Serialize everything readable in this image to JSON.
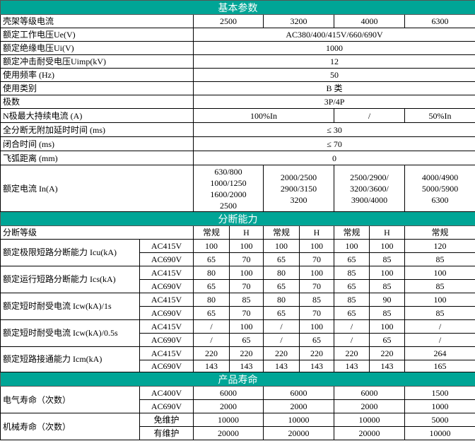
{
  "accent_color": "#00a596",
  "sections": [
    {
      "title": "基本参数",
      "rows": [
        {
          "label": "壳架等级电流",
          "values": [
            "2500",
            "3200",
            "4000",
            "6300"
          ]
        },
        {
          "label": "额定工作电压Ue(V)",
          "values": [
            "AC380/400/415V/660/690V"
          ]
        },
        {
          "label": "额定绝缘电压Ui(V)",
          "values": [
            "1000"
          ]
        },
        {
          "label": "额定冲击耐受电压Uimp(kV)",
          "values": [
            "12"
          ]
        },
        {
          "label": "使用频率 (Hz)",
          "values": [
            "50"
          ]
        },
        {
          "label": "使用类别",
          "values": [
            "B 类"
          ]
        },
        {
          "label": "极数",
          "values": [
            "3P/4P"
          ]
        },
        {
          "label": "N极最大持续电流 (A)",
          "values": [
            "100%In",
            "/",
            "50%In"
          ]
        },
        {
          "label": "全分断无附加延时时间 (ms)",
          "values": [
            "≤ 30"
          ]
        },
        {
          "label": "闭合时间 (ms)",
          "values": [
            "≤ 70"
          ]
        },
        {
          "label": "飞弧距离 (mm)",
          "values": [
            "0"
          ]
        },
        {
          "label": "额定电流 In(A)",
          "values": [
            "630/800\n1000/1250\n1600/2000\n2500",
            "2000/2500\n2900/3150\n3200",
            "2500/2900/\n3200/3600/\n3900/4000",
            "4000/4900\n5000/5900\n6300"
          ]
        }
      ]
    },
    {
      "title": "分断能力",
      "grade_row": {
        "label": "分断等级",
        "values": [
          "常规",
          "H",
          "常规",
          "H",
          "常规",
          "H",
          "常规"
        ]
      },
      "groups": [
        {
          "label": "额定极限短路分断能力 Icu(kA)",
          "rows": [
            {
              "voltage": "AC415V",
              "values": [
                "100",
                "100",
                "100",
                "100",
                "100",
                "100",
                "120"
              ]
            },
            {
              "voltage": "AC690V",
              "values": [
                "65",
                "70",
                "65",
                "70",
                "65",
                "85",
                "85"
              ]
            }
          ]
        },
        {
          "label": "额定运行短路分断能力 Ics(kA)",
          "rows": [
            {
              "voltage": "AC415V",
              "values": [
                "80",
                "100",
                "80",
                "100",
                "85",
                "100",
                "100"
              ]
            },
            {
              "voltage": "AC690V",
              "values": [
                "65",
                "70",
                "65",
                "70",
                "65",
                "85",
                "85"
              ]
            }
          ]
        },
        {
          "label": "额定短时耐受电流 Icw(kA)/1s",
          "rows": [
            {
              "voltage": "AC415V",
              "values": [
                "80",
                "85",
                "80",
                "85",
                "85",
                "90",
                "100"
              ]
            },
            {
              "voltage": "AC690V",
              "values": [
                "65",
                "70",
                "65",
                "70",
                "65",
                "85",
                "85"
              ]
            }
          ]
        },
        {
          "label": "额定短时耐受电流 Icw(kA)/0.5s",
          "rows": [
            {
              "voltage": "AC415V",
              "values": [
                "/",
                "100",
                "/",
                "100",
                "/",
                "100",
                "/"
              ]
            },
            {
              "voltage": "AC690V",
              "values": [
                "/",
                "65",
                "/",
                "65",
                "/",
                "65",
                "/"
              ]
            }
          ]
        },
        {
          "label": "额定短路接通能力 Icm(kA)",
          "rows": [
            {
              "voltage": "AC415V",
              "values": [
                "220",
                "220",
                "220",
                "220",
                "220",
                "220",
                "264"
              ]
            },
            {
              "voltage": "AC690V",
              "values": [
                "143",
                "143",
                "143",
                "143",
                "143",
                "143",
                "165"
              ]
            }
          ]
        }
      ]
    },
    {
      "title": "产品寿命",
      "groups": [
        {
          "label": "电气寿命（次数）",
          "rows": [
            {
              "voltage": "AC400V",
              "values": [
                "6000",
                "6000",
                "6000",
                "1500"
              ]
            },
            {
              "voltage": "AC690V",
              "values": [
                "2000",
                "2000",
                "2000",
                "1000"
              ]
            }
          ]
        },
        {
          "label": "机械寿命（次数）",
          "rows": [
            {
              "voltage": "免维护",
              "values": [
                "10000",
                "10000",
                "10000",
                "5000"
              ]
            },
            {
              "voltage": "有维护",
              "values": [
                "20000",
                "20000",
                "20000",
                "10000"
              ]
            }
          ]
        }
      ]
    }
  ]
}
